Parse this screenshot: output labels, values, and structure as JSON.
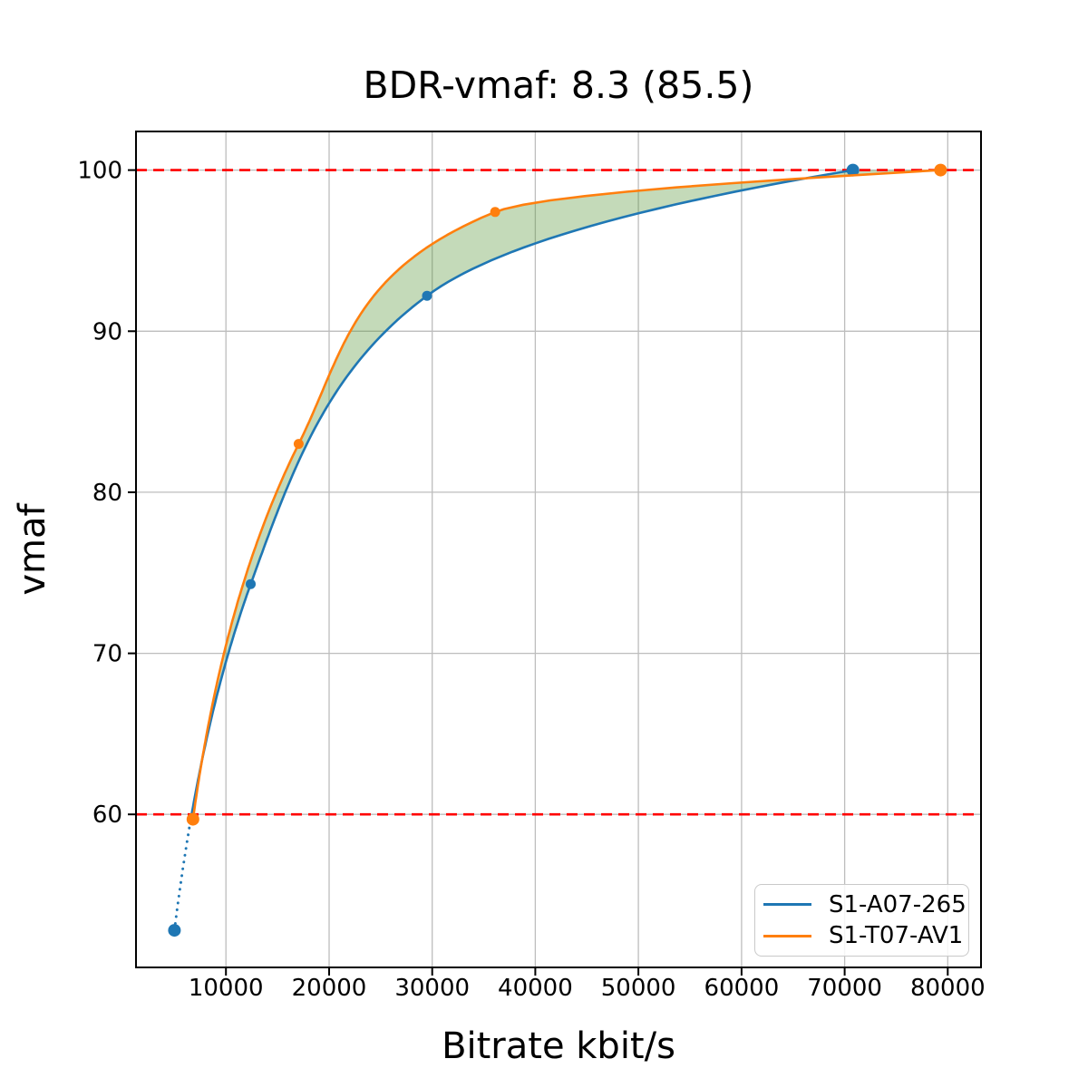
{
  "chart_data": {
    "type": "line",
    "title": "BDR-vmaf: 8.3 (85.5)",
    "xlabel": "Bitrate kbit/s",
    "ylabel": "vmaf",
    "xlim": [
      1275,
      83225
    ],
    "ylim": [
      50.5,
      102.4
    ],
    "grid": true,
    "grid_color": "#bdbdbd",
    "spine_color": "#000000",
    "xticks": {
      "values": [
        10000,
        20000,
        30000,
        40000,
        50000,
        60000,
        70000,
        80000
      ],
      "labels": [
        "10000",
        "20000",
        "30000",
        "40000",
        "50000",
        "60000",
        "70000",
        "80000"
      ]
    },
    "yticks": {
      "values": [
        60,
        70,
        80,
        90,
        100
      ],
      "labels": [
        "60",
        "70",
        "80",
        "90",
        "100"
      ]
    },
    "series": [
      {
        "name": "S1-A07-265",
        "color": "#1f77b4",
        "points": [
          [
            5000,
            52.8
          ],
          [
            12400,
            74.3
          ],
          [
            29500,
            92.2
          ],
          [
            70800,
            100.0
          ]
        ],
        "marker": "circle",
        "marker_radii": [
          7,
          5.5,
          5.5,
          7
        ],
        "dotted_below_quality": 60
      },
      {
        "name": "S1-T07-AV1",
        "color": "#ff7f0e",
        "points": [
          [
            6800,
            59.7
          ],
          [
            17050,
            83.0
          ],
          [
            36100,
            97.4
          ],
          [
            79300,
            100.0
          ]
        ],
        "marker": "circle",
        "marker_radii": [
          7,
          5.5,
          5.5,
          7
        ]
      }
    ],
    "reference_lines": [
      {
        "y": 100,
        "color": "#ff0000",
        "style": "dashed"
      },
      {
        "y": 60,
        "color": "#ff0000",
        "style": "dashed"
      }
    ],
    "fill_between": {
      "color": "rgba(85,148,55,0.35)",
      "quality_range": [
        60,
        100
      ]
    },
    "legend": {
      "location": "lower right",
      "entries": [
        "S1-A07-265",
        "S1-T07-AV1"
      ]
    }
  }
}
